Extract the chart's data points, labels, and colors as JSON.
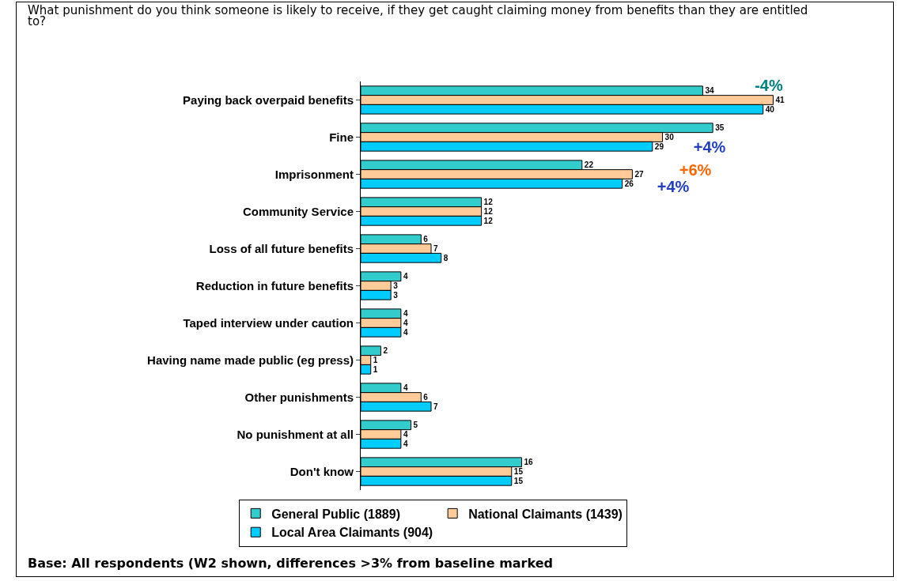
{
  "chart_data": {
    "type": "bar",
    "orientation": "horizontal",
    "title": "What punishment do you think someone is likely to receive, if they get caught claiming money from benefits than they are entitled to?",
    "categories": [
      "Paying back overpaid benefits",
      "Fine",
      "Imprisonment",
      "Community Service",
      "Loss of all future benefits",
      "Reduction in future benefits",
      "Taped interview under caution",
      "Having name made public (eg press)",
      "Other punishments",
      "No punishment at all",
      "Don't know"
    ],
    "series": [
      {
        "name": "General Public (1889)",
        "color": "#33cccc",
        "values": [
          34,
          35,
          22,
          12,
          6,
          4,
          4,
          2,
          4,
          5,
          16
        ]
      },
      {
        "name": "National Claimants (1439)",
        "color": "#ffcc99",
        "values": [
          41,
          30,
          27,
          12,
          7,
          3,
          4,
          1,
          6,
          4,
          15
        ]
      },
      {
        "name": "Local Area Claimants (904)",
        "color": "#00ccff",
        "values": [
          40,
          29,
          26,
          12,
          8,
          3,
          4,
          1,
          7,
          4,
          15
        ]
      }
    ],
    "data_labels": true,
    "grid": false,
    "legend": "bottom",
    "tick_labels": "y",
    "annotations": [
      "-4%",
      "+4%",
      "+6%",
      "+4%",
      "Base:  All respondents (W2 shown, differences >3% from baseline marked"
    ]
  }
}
